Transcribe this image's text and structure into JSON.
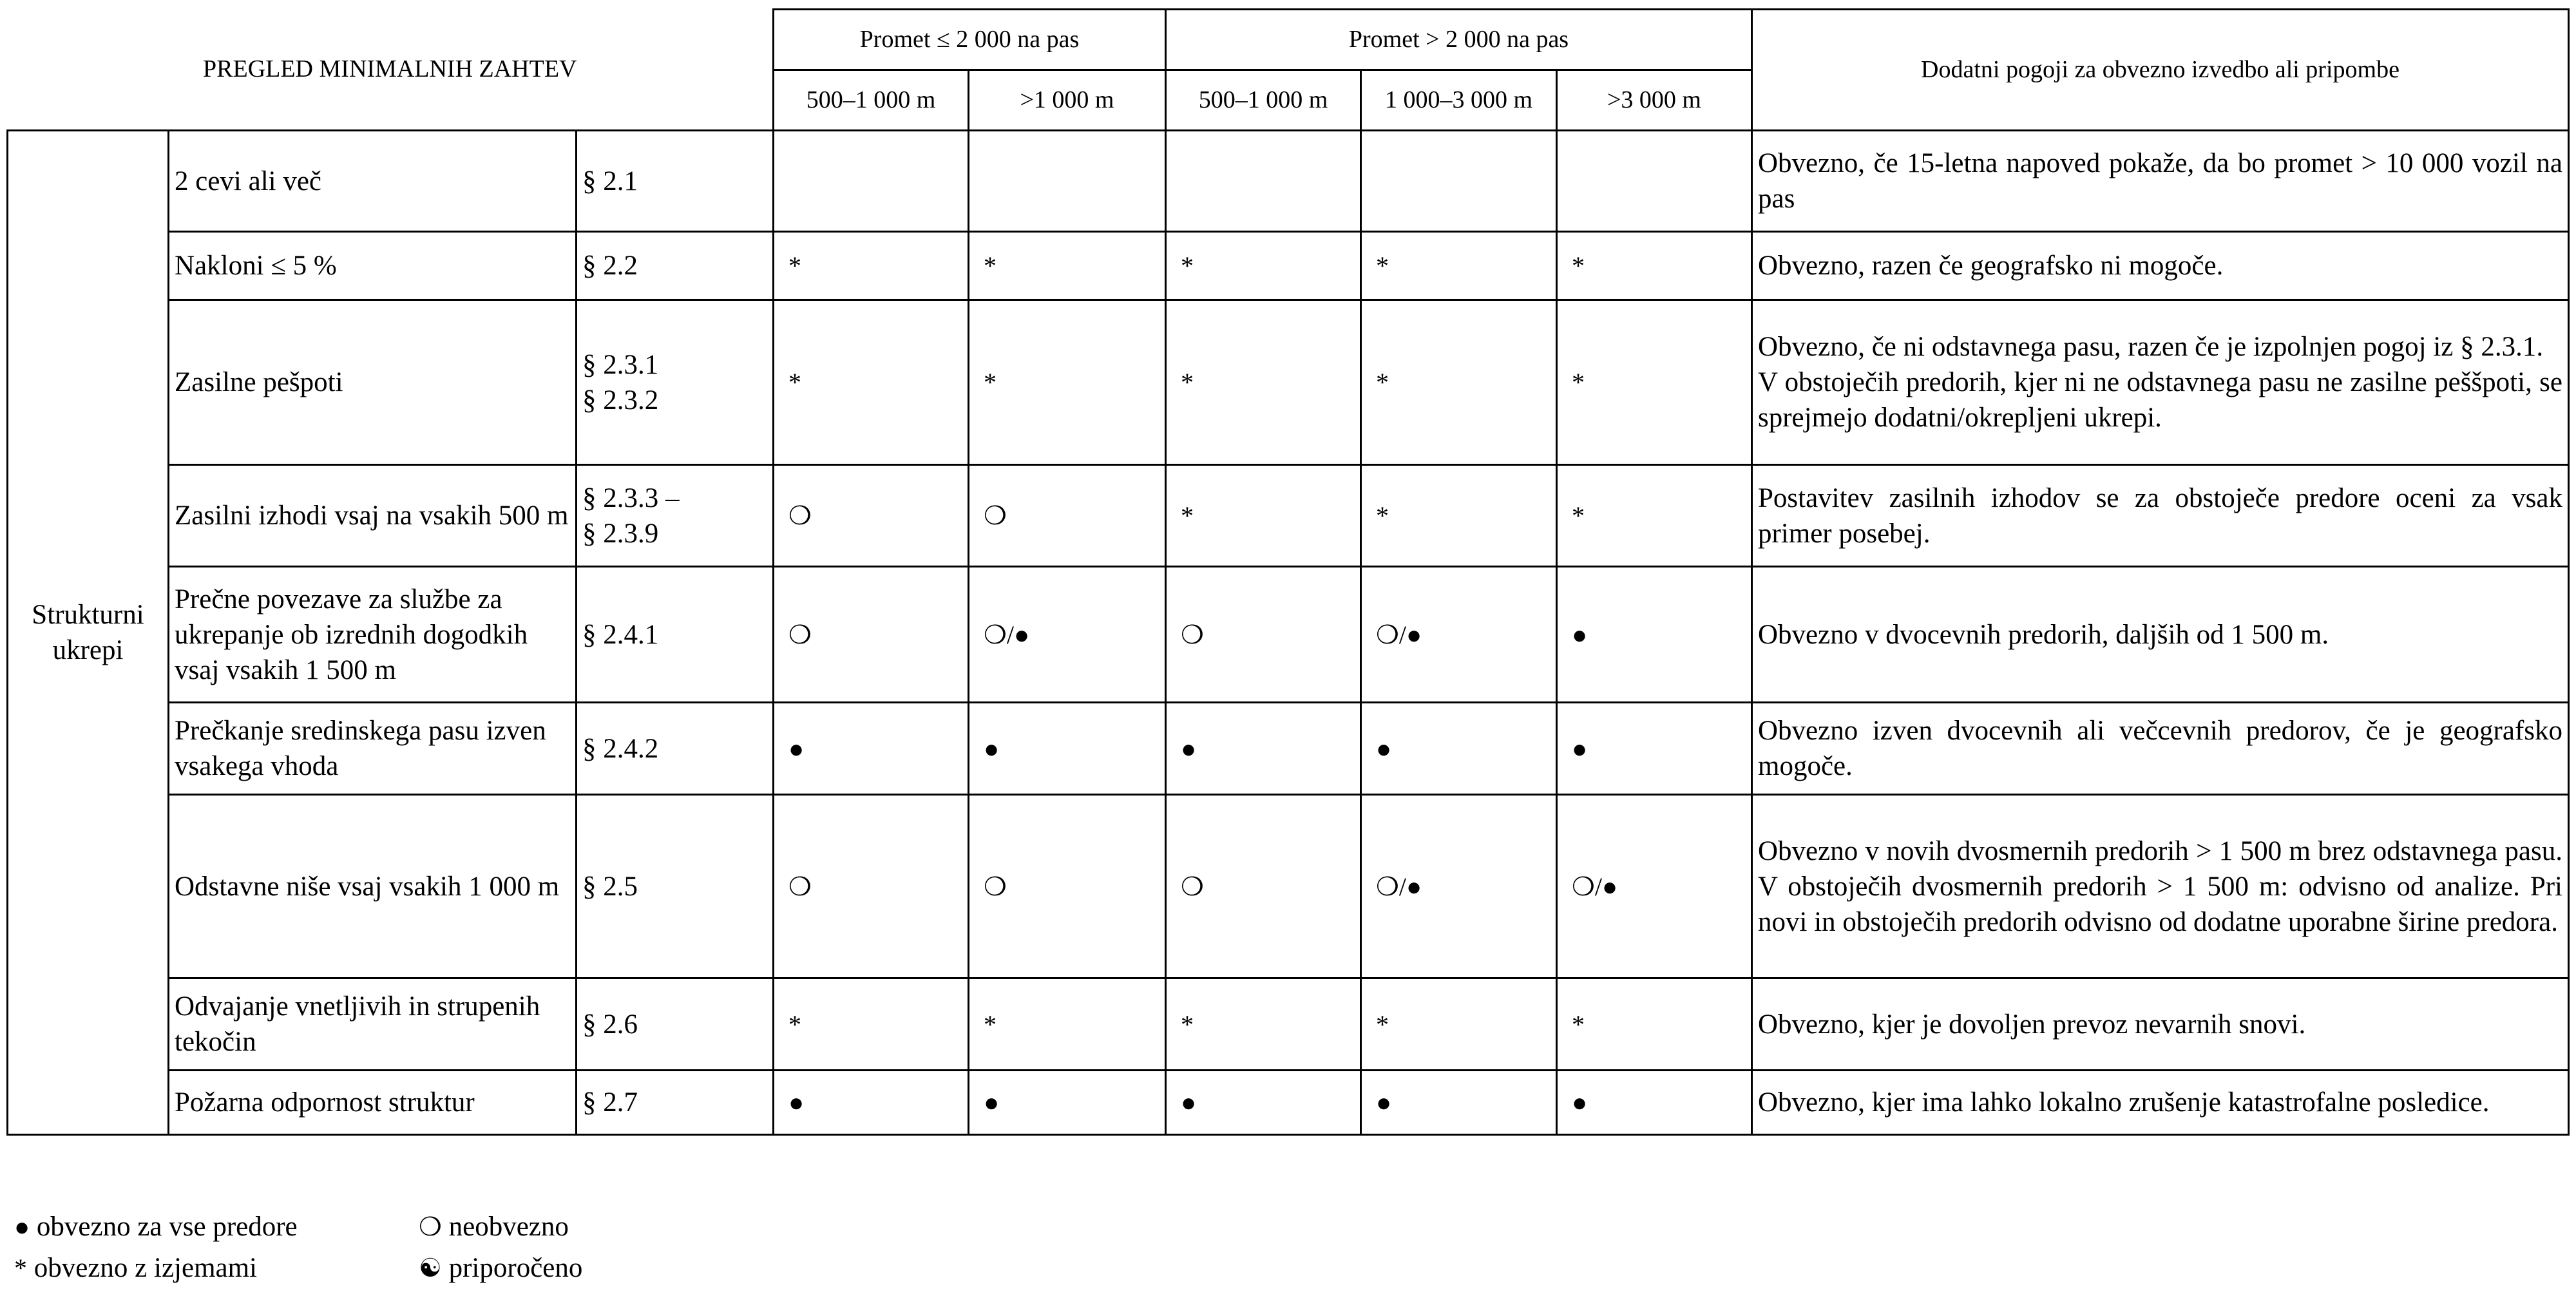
{
  "header": {
    "title": "PREGLED MINIMALNIH ZAHTEV",
    "group1": "Promet ≤ 2 000 na pas",
    "group2": "Promet > 2 000 na pas",
    "remarks": "Dodatni pogoji za obvezno izvedbo ali pripombe",
    "subcols": [
      "500–1 000 m",
      ">1 000 m",
      "500–1 000 m",
      "1 000–3 000 m",
      ">3 000 m"
    ]
  },
  "category": "Strukturni ukrepi",
  "rows": [
    {
      "name": "2 cevi ali več",
      "ref": "§ 2.1",
      "cells": [
        "",
        "",
        "",
        "",
        ""
      ],
      "remark": "Obvezno, če 15-letna napoved pokaže, da bo promet > 10 000 vozil na pas"
    },
    {
      "name": "Nakloni ≤ 5 %",
      "ref": "§ 2.2",
      "cells": [
        "*",
        "*",
        "*",
        "*",
        "*"
      ],
      "remark": "Obvezno, razen če geografsko ni mogoče."
    },
    {
      "name": "Zasilne pešpoti",
      "ref": "§ 2.3.1\n§ 2.3.2",
      "cells": [
        "*",
        "*",
        "*",
        "*",
        "*"
      ],
      "remark": "Obvezno, če ni odstavnega pasu, razen če je izpolnjen pogoj iz § 2.3.1.\nV obstoječih predorih, kjer ni ne odstavnega pasu ne zasilne peššpoti, se sprejmejo dodatni/okrepljeni ukrepi."
    },
    {
      "name": "Zasilni izhodi vsaj na vsakih 500 m",
      "ref": "§ 2.3.3 –\n§ 2.3.9",
      "cells": [
        "❍",
        "❍",
        "*",
        "*",
        "*"
      ],
      "remark": "Postavitev zasilnih izhodov se za obstoječe predore oceni za vsak primer posebej."
    },
    {
      "name": "Prečne povezave za službe za ukrepanje ob izrednih dogodkih vsaj vsakih 1 500 m",
      "ref": "§ 2.4.1",
      "cells": [
        "❍",
        "❍/●",
        "❍",
        "❍/●",
        "●"
      ],
      "remark": "Obvezno v dvocevnih predorih, daljših od 1 500 m."
    },
    {
      "name": "Prečkanje sredinskega pasu izven vsakega vhoda",
      "ref": "§ 2.4.2",
      "cells": [
        "●",
        "●",
        "●",
        "●",
        "●"
      ],
      "remark": "Obvezno izven dvocevnih ali večcevnih predorov, če je geografsko mogoče."
    },
    {
      "name": "Odstavne niše vsaj vsakih 1 000 m",
      "ref": "§ 2.5",
      "cells": [
        "❍",
        "❍",
        "❍",
        "❍/●",
        "❍/●"
      ],
      "remark": "Obvezno v novih dvosmernih predorih > 1 500 m brez odstavnega pasu. V obstoječih dvosmernih predorih > 1 500 m: odvisno od analize. Pri novi in obstoječih predorih odvisno od dodatne uporabne širine predora."
    },
    {
      "name": "Odvajanje vnetljivih in strupenih tekočin",
      "ref": "§ 2.6",
      "cells": [
        "*",
        "*",
        "*",
        "*",
        "*"
      ],
      "remark": "Obvezno, kjer je dovoljen prevoz nevarnih snovi."
    },
    {
      "name": "Požarna odpornost struktur",
      "ref": "§ 2.7",
      "cells": [
        "●",
        "●",
        "●",
        "●",
        "●"
      ],
      "remark": "Obvezno, kjer ima lahko lokalno zrušenje katastrofalne posledice."
    }
  ],
  "legend": [
    {
      "symbol": "●",
      "label": "obvezno za vse predore"
    },
    {
      "symbol": "❍",
      "label": "neobvezno"
    },
    {
      "symbol": "*",
      "label": "obvezno z izjemami"
    },
    {
      "symbol": "☯",
      "label": "priporočeno"
    }
  ]
}
